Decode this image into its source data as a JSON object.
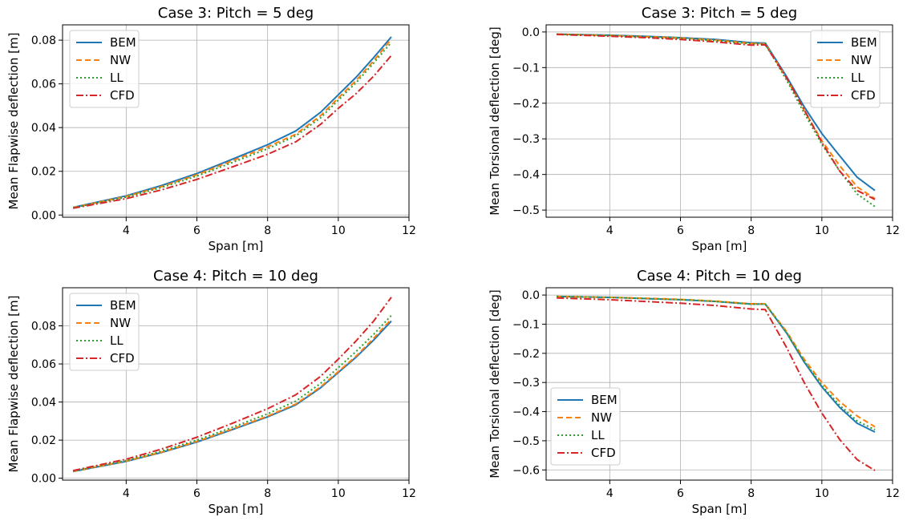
{
  "figure": {
    "panels": [
      {
        "title": "Case 3: Pitch = 5 deg",
        "xlabel": "Span [m]",
        "ylabel": "Mean Flapwise deflection [m]",
        "legend": "top-left",
        "grid": true
      },
      {
        "title": "Case 3: Pitch = 5 deg",
        "xlabel": "Span [m]",
        "ylabel": "Mean Torsional deflection [deg]",
        "legend": "top-right",
        "grid": true
      },
      {
        "title": "Case 4: Pitch = 10 deg",
        "xlabel": "Span [m]",
        "ylabel": "Mean Flapwise deflection [m]",
        "legend": "top-left",
        "grid": true
      },
      {
        "title": "Case 4: Pitch = 10 deg",
        "xlabel": "Span [m]",
        "ylabel": "Mean Torsional deflection [deg]",
        "legend": "bottom-left",
        "grid": true
      }
    ]
  },
  "chart_data": [
    {
      "type": "line",
      "title": "Case 3: Pitch = 5 deg",
      "xlabel": "Span [m]",
      "ylabel": "Mean Flapwise deflection [m]",
      "xlim": [
        2.2,
        12
      ],
      "ylim": [
        -0.001,
        0.087
      ],
      "xticks": [
        4,
        6,
        8,
        10,
        12
      ],
      "yticks": [
        0.0,
        0.02,
        0.04,
        0.06,
        0.08
      ],
      "ytick_labels": [
        "0.00",
        "0.02",
        "0.04",
        "0.06",
        "0.08"
      ],
      "grid": true,
      "legend_position": "top-left",
      "series": [
        {
          "name": "BEM",
          "color": "#1f77b4",
          "dash": "solid",
          "points": [
            [
              2.5,
              0.0035
            ],
            [
              4,
              0.0088
            ],
            [
              5,
              0.0135
            ],
            [
              6,
              0.019
            ],
            [
              7,
              0.0255
            ],
            [
              8,
              0.0322
            ],
            [
              8.8,
              0.0385
            ],
            [
              9.5,
              0.047
            ],
            [
              10,
              0.055
            ],
            [
              10.5,
              0.063
            ],
            [
              11,
              0.072
            ],
            [
              11.5,
              0.0815
            ]
          ]
        },
        {
          "name": "NW",
          "color": "#ff7f0e",
          "dash": "dashed",
          "points": [
            [
              2.5,
              0.0034
            ],
            [
              4,
              0.0085
            ],
            [
              5,
              0.013
            ],
            [
              6,
              0.0184
            ],
            [
              7,
              0.0248
            ],
            [
              8,
              0.0312
            ],
            [
              8.8,
              0.037
            ],
            [
              9.5,
              0.0455
            ],
            [
              10,
              0.0535
            ],
            [
              10.5,
              0.0615
            ],
            [
              11,
              0.0705
            ],
            [
              11.5,
              0.0805
            ]
          ]
        },
        {
          "name": "LL",
          "color": "#2ca02c",
          "dash": "dotted",
          "points": [
            [
              2.5,
              0.0033
            ],
            [
              4,
              0.0082
            ],
            [
              5,
              0.0126
            ],
            [
              6,
              0.0178
            ],
            [
              7,
              0.024
            ],
            [
              8,
              0.0303
            ],
            [
              8.8,
              0.0362
            ],
            [
              9.5,
              0.0445
            ],
            [
              10,
              0.0525
            ],
            [
              10.5,
              0.0605
            ],
            [
              11,
              0.0695
            ],
            [
              11.5,
              0.079
            ]
          ]
        },
        {
          "name": "CFD",
          "color": "#d62728",
          "dash": "dashdot",
          "points": [
            [
              2.5,
              0.0031
            ],
            [
              4,
              0.0075
            ],
            [
              5,
              0.0115
            ],
            [
              6,
              0.0163
            ],
            [
              7,
              0.022
            ],
            [
              8,
              0.0278
            ],
            [
              8.8,
              0.0335
            ],
            [
              9.5,
              0.0415
            ],
            [
              10,
              0.0488
            ],
            [
              10.5,
              0.0555
            ],
            [
              11,
              0.0635
            ],
            [
              11.5,
              0.073
            ]
          ]
        }
      ]
    },
    {
      "type": "line",
      "title": "Case 3: Pitch = 5 deg",
      "xlabel": "Span [m]",
      "ylabel": "Mean Torsional deflection [deg]",
      "xlim": [
        2.2,
        12
      ],
      "ylim": [
        -0.52,
        0.02
      ],
      "xticks": [
        4,
        6,
        8,
        10,
        12
      ],
      "yticks": [
        0.0,
        -0.1,
        -0.2,
        -0.3,
        -0.4,
        -0.5
      ],
      "ytick_labels": [
        "0.0",
        "−0.1",
        "−0.2",
        "−0.3",
        "−0.4",
        "−0.5"
      ],
      "grid": true,
      "legend_position": "top-right",
      "series": [
        {
          "name": "BEM",
          "color": "#1f77b4",
          "dash": "solid",
          "points": [
            [
              2.5,
              -0.006
            ],
            [
              4,
              -0.009
            ],
            [
              5,
              -0.012
            ],
            [
              6,
              -0.016
            ],
            [
              7,
              -0.021
            ],
            [
              8,
              -0.03
            ],
            [
              8.4,
              -0.031
            ],
            [
              9,
              -0.125
            ],
            [
              9.5,
              -0.21
            ],
            [
              10,
              -0.285
            ],
            [
              10.4,
              -0.335
            ],
            [
              11,
              -0.408
            ],
            [
              11.5,
              -0.445
            ]
          ]
        },
        {
          "name": "NW",
          "color": "#ff7f0e",
          "dash": "dashed",
          "points": [
            [
              2.5,
              -0.006
            ],
            [
              4,
              -0.01
            ],
            [
              5,
              -0.013
            ],
            [
              6,
              -0.017
            ],
            [
              7,
              -0.023
            ],
            [
              8,
              -0.032
            ],
            [
              8.4,
              -0.033
            ],
            [
              9,
              -0.13
            ],
            [
              9.5,
              -0.22
            ],
            [
              10,
              -0.305
            ],
            [
              10.5,
              -0.375
            ],
            [
              11,
              -0.435
            ],
            [
              11.5,
              -0.468
            ]
          ]
        },
        {
          "name": "LL",
          "color": "#2ca02c",
          "dash": "dotted",
          "points": [
            [
              2.5,
              -0.006
            ],
            [
              4,
              -0.01
            ],
            [
              5,
              -0.014
            ],
            [
              6,
              -0.018
            ],
            [
              7,
              -0.024
            ],
            [
              8,
              -0.033
            ],
            [
              8.4,
              -0.034
            ],
            [
              9,
              -0.135
            ],
            [
              9.5,
              -0.228
            ],
            [
              10,
              -0.315
            ],
            [
              10.5,
              -0.39
            ],
            [
              11,
              -0.455
            ],
            [
              11.5,
              -0.49
            ]
          ]
        },
        {
          "name": "CFD",
          "color": "#d62728",
          "dash": "dashdot",
          "points": [
            [
              2.5,
              -0.007
            ],
            [
              4,
              -0.012
            ],
            [
              5,
              -0.016
            ],
            [
              6,
              -0.021
            ],
            [
              7,
              -0.028
            ],
            [
              8,
              -0.037
            ],
            [
              8.4,
              -0.036
            ],
            [
              9,
              -0.128
            ],
            [
              9.5,
              -0.218
            ],
            [
              10,
              -0.31
            ],
            [
              10.5,
              -0.39
            ],
            [
              11,
              -0.445
            ],
            [
              11.5,
              -0.47
            ]
          ]
        }
      ]
    },
    {
      "type": "line",
      "title": "Case 4: Pitch = 10 deg",
      "xlabel": "Span [m]",
      "ylabel": "Mean Flapwise deflection [m]",
      "xlim": [
        2.2,
        12
      ],
      "ylim": [
        -0.001,
        0.1
      ],
      "xticks": [
        4,
        6,
        8,
        10,
        12
      ],
      "yticks": [
        0.0,
        0.02,
        0.04,
        0.06,
        0.08
      ],
      "ytick_labels": [
        "0.00",
        "0.02",
        "0.04",
        "0.06",
        "0.08"
      ],
      "grid": true,
      "legend_position": "top-left",
      "series": [
        {
          "name": "BEM",
          "color": "#1f77b4",
          "dash": "solid",
          "points": [
            [
              2.5,
              0.0035
            ],
            [
              4,
              0.0088
            ],
            [
              5,
              0.0135
            ],
            [
              6,
              0.019
            ],
            [
              7,
              0.0255
            ],
            [
              8,
              0.0322
            ],
            [
              8.8,
              0.0385
            ],
            [
              9.5,
              0.0475
            ],
            [
              10,
              0.0555
            ],
            [
              10.5,
              0.0635
            ],
            [
              11,
              0.0725
            ],
            [
              11.5,
              0.0825
            ]
          ]
        },
        {
          "name": "NW",
          "color": "#ff7f0e",
          "dash": "dashed",
          "points": [
            [
              2.5,
              0.0036
            ],
            [
              4,
              0.009
            ],
            [
              5,
              0.0137
            ],
            [
              6,
              0.0193
            ],
            [
              7,
              0.0258
            ],
            [
              8,
              0.0326
            ],
            [
              8.8,
              0.039
            ],
            [
              9.5,
              0.048
            ],
            [
              10,
              0.056
            ],
            [
              10.5,
              0.064
            ],
            [
              11,
              0.0735
            ],
            [
              11.5,
              0.0835
            ]
          ]
        },
        {
          "name": "LL",
          "color": "#2ca02c",
          "dash": "dotted",
          "points": [
            [
              2.5,
              0.0037
            ],
            [
              4,
              0.0093
            ],
            [
              5,
              0.0142
            ],
            [
              6,
              0.02
            ],
            [
              7,
              0.0267
            ],
            [
              8,
              0.0338
            ],
            [
              8.8,
              0.0405
            ],
            [
              9.5,
              0.0498
            ],
            [
              10,
              0.058
            ],
            [
              10.5,
              0.0665
            ],
            [
              11,
              0.0755
            ],
            [
              11.5,
              0.0855
            ]
          ]
        },
        {
          "name": "CFD",
          "color": "#d62728",
          "dash": "dashdot",
          "points": [
            [
              2.5,
              0.004
            ],
            [
              4,
              0.01
            ],
            [
              5,
              0.0153
            ],
            [
              6,
              0.0215
            ],
            [
              7,
              0.0288
            ],
            [
              8,
              0.0365
            ],
            [
              8.8,
              0.0438
            ],
            [
              9.5,
              0.0535
            ],
            [
              10,
              0.0625
            ],
            [
              10.5,
              0.072
            ],
            [
              11,
              0.0825
            ],
            [
              11.5,
              0.095
            ]
          ]
        }
      ]
    },
    {
      "type": "line",
      "title": "Case 4: Pitch = 10 deg",
      "xlabel": "Span [m]",
      "ylabel": "Mean Torsional deflection [deg]",
      "xlim": [
        2.2,
        12
      ],
      "ylim": [
        -0.635,
        0.025
      ],
      "xticks": [
        4,
        6,
        8,
        10,
        12
      ],
      "yticks": [
        0.0,
        -0.1,
        -0.2,
        -0.3,
        -0.4,
        -0.5,
        -0.6
      ],
      "ytick_labels": [
        "0.0",
        "−0.1",
        "−0.2",
        "−0.3",
        "−0.4",
        "−0.5",
        "−0.6"
      ],
      "grid": true,
      "legend_position": "bottom-left",
      "series": [
        {
          "name": "BEM",
          "color": "#1f77b4",
          "dash": "solid",
          "points": [
            [
              2.5,
              -0.005
            ],
            [
              4,
              -0.008
            ],
            [
              5,
              -0.012
            ],
            [
              6,
              -0.016
            ],
            [
              7,
              -0.022
            ],
            [
              8,
              -0.031
            ],
            [
              8.4,
              -0.031
            ],
            [
              9,
              -0.13
            ],
            [
              9.5,
              -0.23
            ],
            [
              10,
              -0.315
            ],
            [
              10.5,
              -0.385
            ],
            [
              11,
              -0.44
            ],
            [
              11.5,
              -0.47
            ]
          ]
        },
        {
          "name": "NW",
          "color": "#ff7f0e",
          "dash": "dashed",
          "points": [
            [
              2.5,
              -0.005
            ],
            [
              4,
              -0.008
            ],
            [
              5,
              -0.011
            ],
            [
              6,
              -0.015
            ],
            [
              7,
              -0.021
            ],
            [
              8,
              -0.03
            ],
            [
              8.4,
              -0.03
            ],
            [
              9,
              -0.125
            ],
            [
              9.5,
              -0.22
            ],
            [
              10,
              -0.3
            ],
            [
              10.5,
              -0.365
            ],
            [
              11,
              -0.415
            ],
            [
              11.5,
              -0.452
            ]
          ]
        },
        {
          "name": "LL",
          "color": "#2ca02c",
          "dash": "dotted",
          "points": [
            [
              2.5,
              -0.005
            ],
            [
              4,
              -0.008
            ],
            [
              5,
              -0.012
            ],
            [
              6,
              -0.016
            ],
            [
              7,
              -0.022
            ],
            [
              8,
              -0.031
            ],
            [
              8.4,
              -0.031
            ],
            [
              9,
              -0.128
            ],
            [
              9.5,
              -0.226
            ],
            [
              10,
              -0.31
            ],
            [
              10.5,
              -0.378
            ],
            [
              11,
              -0.432
            ],
            [
              11.5,
              -0.462
            ]
          ]
        },
        {
          "name": "CFD",
          "color": "#d62728",
          "dash": "dashdot",
          "points": [
            [
              2.5,
              -0.01
            ],
            [
              4,
              -0.016
            ],
            [
              5,
              -0.022
            ],
            [
              6,
              -0.028
            ],
            [
              7,
              -0.036
            ],
            [
              8,
              -0.048
            ],
            [
              8.4,
              -0.05
            ],
            [
              9,
              -0.18
            ],
            [
              9.5,
              -0.3
            ],
            [
              10,
              -0.405
            ],
            [
              10.5,
              -0.495
            ],
            [
              11,
              -0.565
            ],
            [
              11.5,
              -0.602
            ]
          ]
        }
      ]
    }
  ]
}
